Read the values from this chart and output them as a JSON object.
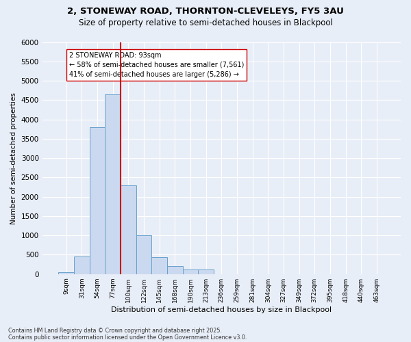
{
  "title_line1": "2, STONEWAY ROAD, THORNTON-CLEVELEYS, FY5 3AU",
  "title_line2": "Size of property relative to semi-detached houses in Blackpool",
  "xlabel": "Distribution of semi-detached houses by size in Blackpool",
  "ylabel": "Number of semi-detached properties",
  "categories": [
    "9sqm",
    "31sqm",
    "54sqm",
    "77sqm",
    "100sqm",
    "122sqm",
    "145sqm",
    "168sqm",
    "190sqm",
    "213sqm",
    "236sqm",
    "259sqm",
    "281sqm",
    "304sqm",
    "327sqm",
    "349sqm",
    "372sqm",
    "395sqm",
    "418sqm",
    "440sqm",
    "463sqm"
  ],
  "values": [
    50,
    460,
    3800,
    4650,
    2300,
    1000,
    430,
    200,
    120,
    120,
    0,
    0,
    0,
    0,
    0,
    0,
    0,
    0,
    0,
    0,
    0
  ],
  "bar_color": "#cad9ef",
  "bar_edgecolor": "#6aa0cb",
  "vline_color": "#cc0000",
  "vline_pos": 3.5,
  "annotation_text": "2 STONEWAY ROAD: 93sqm\n← 58% of semi-detached houses are smaller (7,561)\n41% of semi-detached houses are larger (5,286) →",
  "annotation_box_edgecolor": "#cc0000",
  "ylim_max": 6000,
  "yticks": [
    0,
    500,
    1000,
    1500,
    2000,
    2500,
    3000,
    3500,
    4000,
    4500,
    5000,
    5500,
    6000
  ],
  "footnote1": "Contains HM Land Registry data © Crown copyright and database right 2025.",
  "footnote2": "Contains public sector information licensed under the Open Government Licence v3.0.",
  "fig_bg_color": "#e8eef7",
  "plot_bg_color": "#e8eef7"
}
